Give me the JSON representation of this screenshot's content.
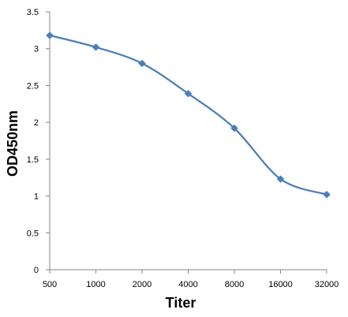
{
  "chart_data": {
    "type": "line",
    "title": "",
    "xlabel": "Titer",
    "ylabel": "OD450nm",
    "categories": [
      "500",
      "1000",
      "2000",
      "4000",
      "8000",
      "16000",
      "32000"
    ],
    "series": [
      {
        "values": [
          3.18,
          3.02,
          2.8,
          2.39,
          1.92,
          1.23,
          1.02
        ]
      }
    ],
    "yticks": [
      "0",
      "0.5",
      "1",
      "1.5",
      "2",
      "2.5",
      "3",
      "3.5"
    ],
    "ylim": [
      0,
      3.5
    ],
    "grid": false,
    "legend": "none",
    "smooth": true,
    "marker": "diamond",
    "colors": {
      "series": "#4a7ebb",
      "axis": "#868686"
    }
  }
}
